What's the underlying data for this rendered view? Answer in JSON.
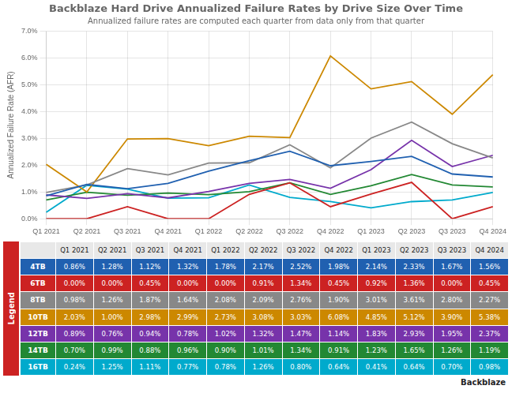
{
  "chart_data": {
    "type": "line",
    "title": "Backblaze Hard Drive Annualized Failure Rates by Drive Size Over Time",
    "subtitle": "Annualized failure rates are computed each quarter from data only from that quarter",
    "ylabel": "Annualized Failure Rate (AFR)",
    "categories": [
      "Q1 2021",
      "Q2 2021",
      "Q3 2021",
      "Q4 2021",
      "Q1 2022",
      "Q2 2022",
      "Q3 2022",
      "Q4 2022",
      "Q1 2023",
      "Q2 2023",
      "Q3 2023",
      "Q4 2024"
    ],
    "series": [
      {
        "name": "4TB",
        "color": "#2060b0",
        "values": [
          0.0086,
          0.0128,
          0.0112,
          0.0132,
          0.0178,
          0.0217,
          0.0252,
          0.0198,
          0.0214,
          0.0233,
          0.0167,
          0.0156
        ],
        "value_labels": [
          "0.86%",
          "1.28%",
          "1.12%",
          "1.32%",
          "1.78%",
          "2.17%",
          "2.52%",
          "1.98%",
          "2.14%",
          "2.33%",
          "1.67%",
          "1.56%"
        ]
      },
      {
        "name": "6TB",
        "color": "#cc2222",
        "values": [
          0.0,
          0.0,
          0.0045,
          0.0,
          0.0,
          0.0091,
          0.0134,
          0.0045,
          0.0092,
          0.0136,
          0.0,
          0.0045
        ],
        "value_labels": [
          "0.00%",
          "0.00%",
          "0.45%",
          "0.00%",
          "0.00%",
          "0.91%",
          "1.34%",
          "0.45%",
          "0.92%",
          "1.36%",
          "0.00%",
          "0.45%"
        ]
      },
      {
        "name": "8TB",
        "color": "#888888",
        "values": [
          0.0098,
          0.0126,
          0.0187,
          0.0164,
          0.0208,
          0.0209,
          0.0276,
          0.019,
          0.0301,
          0.0361,
          0.028,
          0.0227
        ],
        "value_labels": [
          "0.98%",
          "1.26%",
          "1.87%",
          "1.64%",
          "2.08%",
          "2.09%",
          "2.76%",
          "1.90%",
          "3.01%",
          "3.61%",
          "2.80%",
          "2.27%"
        ]
      },
      {
        "name": "10TB",
        "color": "#cc8800",
        "values": [
          0.0203,
          0.01,
          0.0298,
          0.0299,
          0.0273,
          0.0308,
          0.0303,
          0.0608,
          0.0485,
          0.0512,
          0.039,
          0.0538
        ],
        "value_labels": [
          "2.03%",
          "1.00%",
          "2.98%",
          "2.99%",
          "2.73%",
          "3.08%",
          "3.03%",
          "6.08%",
          "4.85%",
          "5.12%",
          "3.90%",
          "5.38%"
        ]
      },
      {
        "name": "12TB",
        "color": "#7733aa",
        "values": [
          0.0089,
          0.0076,
          0.0094,
          0.0078,
          0.0102,
          0.0132,
          0.0147,
          0.0114,
          0.0183,
          0.0293,
          0.0195,
          0.0237
        ],
        "value_labels": [
          "0.89%",
          "0.76%",
          "0.94%",
          "0.78%",
          "1.02%",
          "1.32%",
          "1.47%",
          "1.14%",
          "1.83%",
          "2.93%",
          "1.95%",
          "2.37%"
        ]
      },
      {
        "name": "14TB",
        "color": "#228833",
        "values": [
          0.007,
          0.0099,
          0.0088,
          0.0096,
          0.009,
          0.0101,
          0.0134,
          0.0091,
          0.0123,
          0.0165,
          0.0126,
          0.0119
        ],
        "value_labels": [
          "0.70%",
          "0.99%",
          "0.88%",
          "0.96%",
          "0.90%",
          "1.01%",
          "1.34%",
          "0.91%",
          "1.23%",
          "1.65%",
          "1.26%",
          "1.19%"
        ]
      },
      {
        "name": "16TB",
        "color": "#00aacc",
        "values": [
          0.0024,
          0.0125,
          0.0111,
          0.0077,
          0.0078,
          0.0126,
          0.008,
          0.0064,
          0.0041,
          0.0064,
          0.007,
          0.0098
        ],
        "value_labels": [
          "0.24%",
          "1.25%",
          "1.11%",
          "0.77%",
          "0.78%",
          "1.26%",
          "0.80%",
          "0.64%",
          "0.41%",
          "0.64%",
          "0.70%",
          "0.98%"
        ]
      }
    ],
    "ylim": [
      0.0,
      0.07
    ],
    "yticks": [
      {
        "value": 0.0,
        "label": "0.0%"
      },
      {
        "value": 0.01,
        "label": "1.0%"
      },
      {
        "value": 0.02,
        "label": "2.0%"
      },
      {
        "value": 0.03,
        "label": "3.0%"
      },
      {
        "value": 0.04,
        "label": "4.0%"
      },
      {
        "value": 0.05,
        "label": "5.0%"
      },
      {
        "value": 0.06,
        "label": "6.0%"
      },
      {
        "value": 0.07,
        "label": "7.0%"
      }
    ],
    "grid": true,
    "marker": "none",
    "annotations": [
      "Legend",
      "Backblaze"
    ]
  }
}
